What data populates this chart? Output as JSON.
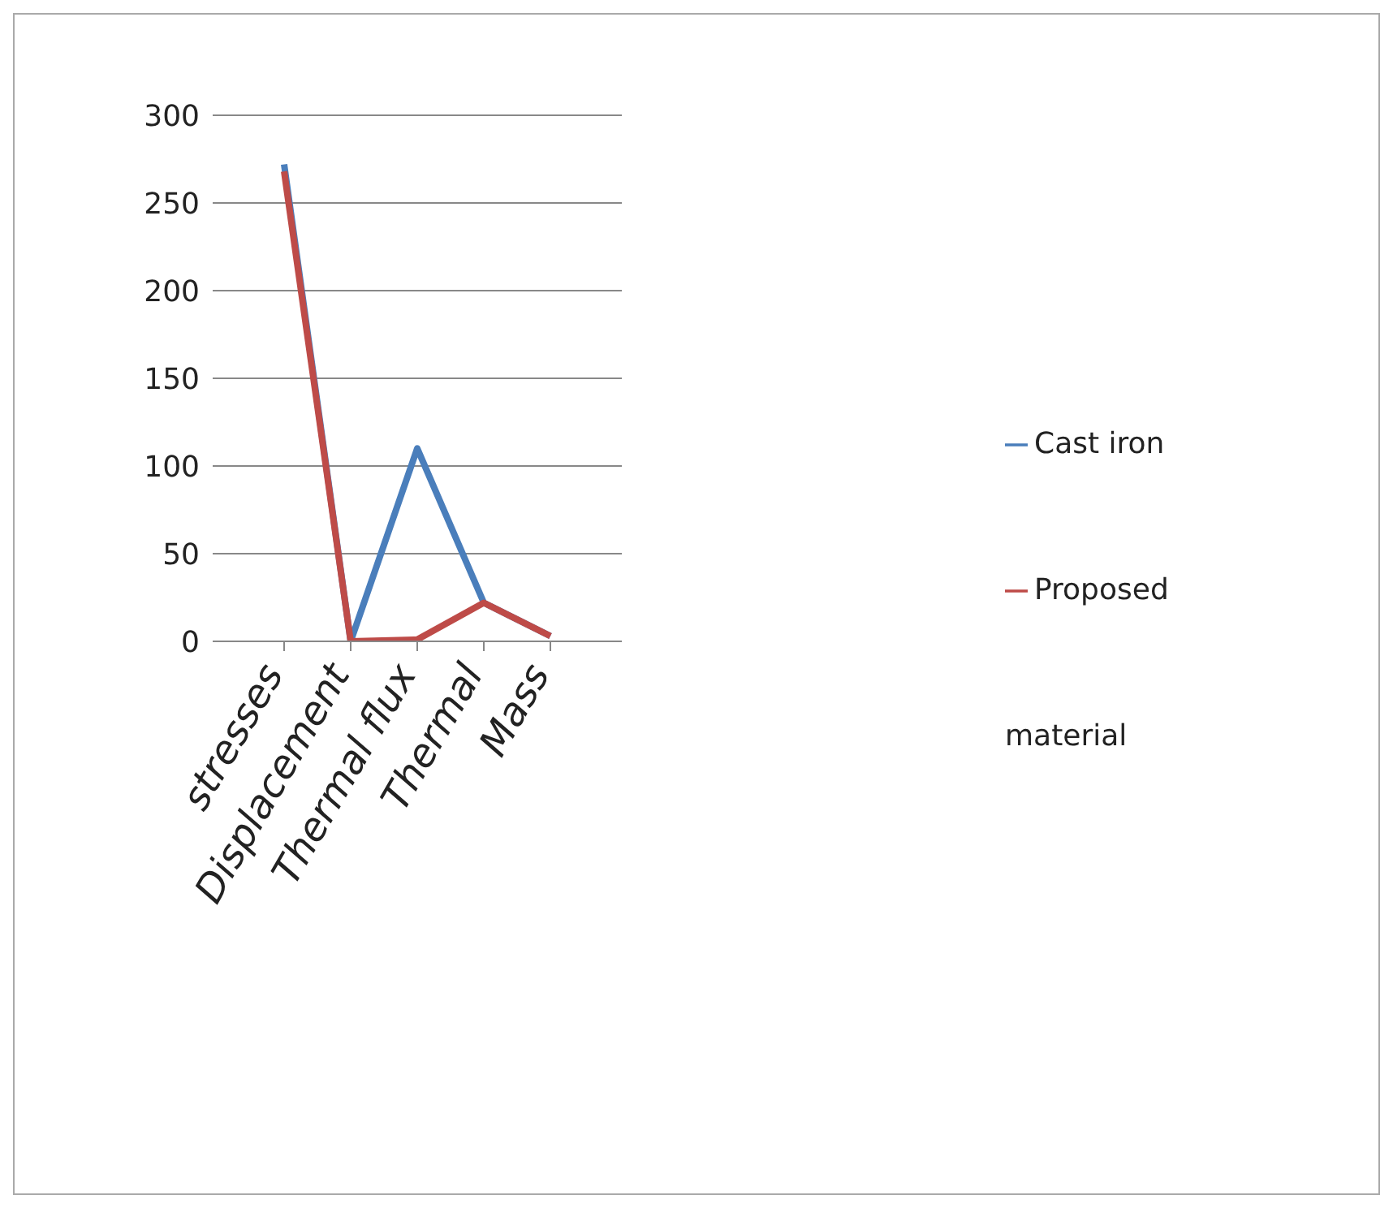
{
  "chart_data": {
    "type": "line",
    "categories": [
      "stresses",
      "Displacement",
      "Thermal flux",
      "Thermal",
      "Mass"
    ],
    "series": [
      {
        "name": "Cast iron",
        "color": "#4a7ebb",
        "values": [
          272,
          0,
          110,
          22,
          3
        ]
      },
      {
        "name": "Proposed material",
        "color": "#be4b48",
        "values": [
          268,
          0,
          1,
          22,
          3
        ]
      }
    ],
    "ylim": [
      0,
      300
    ],
    "yticks": [
      0,
      50,
      100,
      150,
      200,
      250,
      300
    ],
    "grid": "y",
    "legend": "right",
    "marker": "none",
    "line_style": "solid"
  }
}
